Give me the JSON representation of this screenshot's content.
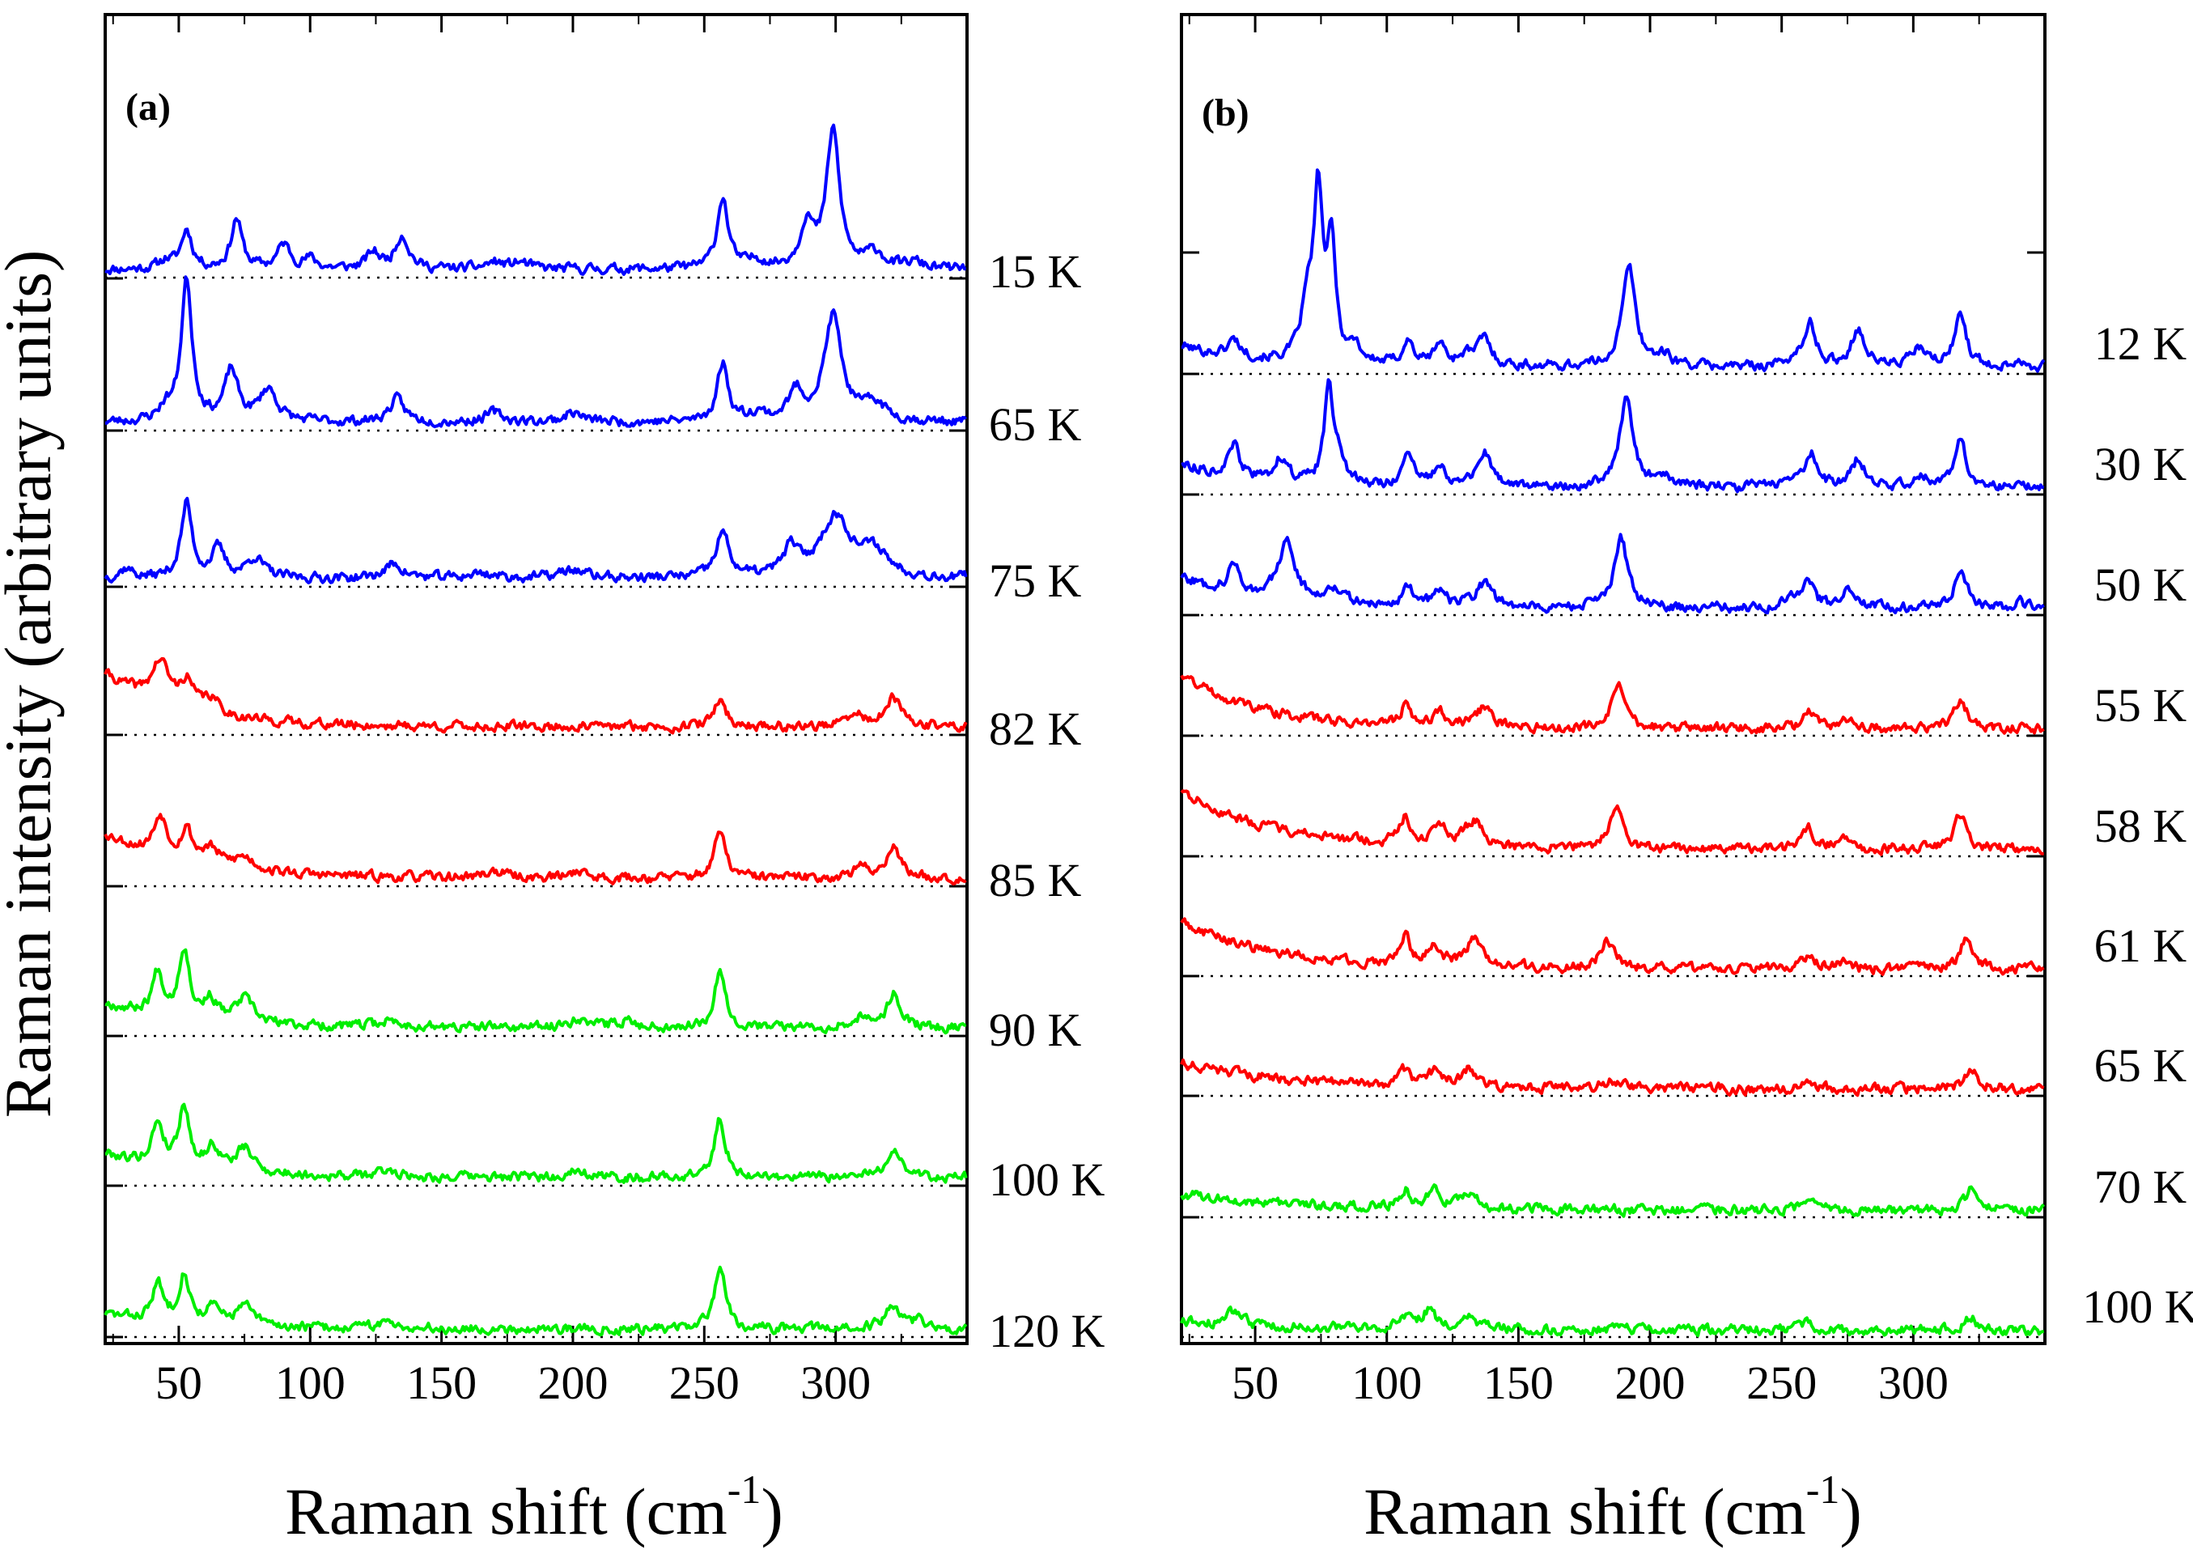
{
  "figure": {
    "ylabel": "Raman intensity (arbitrary units)"
  },
  "chart_data": [
    {
      "type": "line",
      "panel": "(a)",
      "xlabel": "Raman shift (cm",
      "xlabel_sup": "-1",
      "xlabel_close": ")",
      "ylabel": "Raman intensity (arbitrary units)",
      "xlim": [
        22,
        350
      ],
      "xticks": [
        50,
        100,
        150,
        200,
        250,
        300
      ],
      "xtick_labels": [
        "50",
        "100",
        "150",
        "200",
        "250",
        "300"
      ],
      "grid": false,
      "baseline_style": "dotted",
      "series": [
        {
          "name": "15 K",
          "label": "15 K",
          "color": "#0000ff",
          "amp": 1.0,
          "peaks": [
            [
              45,
              10,
              3
            ],
            [
              53,
              48,
              2.5
            ],
            [
              72,
              62,
              2.5
            ],
            [
              90,
              30,
              3
            ],
            [
              100,
              12,
              3
            ],
            [
              124,
              20,
              3
            ],
            [
              135,
              42,
              3
            ],
            [
              170,
              8,
              4
            ],
            [
              180,
              8,
              4
            ],
            [
              257,
              88,
              2.5
            ],
            [
              270,
              10,
              4
            ],
            [
              289,
              55,
              3
            ],
            [
              299,
              170,
              3
            ],
            [
              315,
              20,
              4
            ],
            [
              330,
              8,
              4
            ]
          ],
          "seed": 11
        },
        {
          "name": "65 K",
          "label": "65 K",
          "color": "#0000ff",
          "amp": 1.0,
          "peaks": [
            [
              45,
              15,
              3
            ],
            [
              53,
              175,
              2.5
            ],
            [
              70,
              62,
              3
            ],
            [
              84,
              40,
              4
            ],
            [
              133,
              28,
              3.5
            ],
            [
              170,
              12,
              4
            ],
            [
              200,
              12,
              4
            ],
            [
              257,
              72,
              2.5
            ],
            [
              270,
              10,
              4
            ],
            [
              285,
              35,
              3.5
            ],
            [
              299,
              130,
              4
            ],
            [
              315,
              22,
              5
            ]
          ],
          "seed": 23
        },
        {
          "name": "75 K",
          "label": "75 K",
          "color": "#0000ff",
          "amp": 1.0,
          "peaks": [
            [
              30,
              12,
              3
            ],
            [
              53,
              92,
              2.5
            ],
            [
              65,
              35,
              3
            ],
            [
              79,
              25,
              4
            ],
            [
              132,
              18,
              4
            ],
            [
              165,
              6,
              6
            ],
            [
              200,
              10,
              6
            ],
            [
              257,
              55,
              3
            ],
            [
              283,
              34,
              3.5
            ],
            [
              300,
              75,
              7
            ],
            [
              315,
              30,
              6
            ]
          ],
          "seed": 37
        },
        {
          "name": "82 K",
          "label": "82 K",
          "color": "#ff0000",
          "amp": 1.0,
          "peaks": [
            [
              43,
              50,
              4
            ],
            [
              53,
              32,
              3
            ],
            [
              62,
              18,
              4
            ],
            [
              256,
              35,
              2.5
            ],
            [
              308,
              14,
              4
            ],
            [
              322,
              34,
              3.5
            ]
          ],
          "decay": [
            65,
            28
          ],
          "seed": 41
        },
        {
          "name": "85 K",
          "label": "85 K",
          "color": "#ff0000",
          "amp": 1.0,
          "peaks": [
            [
              43,
              50,
              3
            ],
            [
              53,
              38,
              2.5
            ],
            [
              62,
              20,
              4
            ],
            [
              75,
              15,
              5
            ],
            [
              170,
              8,
              5
            ],
            [
              202,
              10,
              3
            ],
            [
              256,
              58,
              2.5
            ],
            [
              310,
              12,
              4
            ],
            [
              322,
              40,
              3
            ]
          ],
          "decay": [
            55,
            30
          ],
          "seed": 53
        },
        {
          "name": "90 K",
          "label": "90 K",
          "color": "#00ee00",
          "amp": 1.0,
          "peaks": [
            [
              42,
              52,
              2.5
            ],
            [
              52,
              85,
              2.5
            ],
            [
              62,
              25,
              3
            ],
            [
              75,
              30,
              4
            ],
            [
              130,
              8,
              5
            ],
            [
              202,
              12,
              4
            ],
            [
              220,
              8,
              5
            ],
            [
              256,
              72,
              2.5
            ],
            [
              308,
              12,
              4
            ],
            [
              322,
              42,
              3
            ]
          ],
          "decay": [
            30,
            30
          ],
          "seed": 67
        },
        {
          "name": "100 K",
          "label": "100 K",
          "color": "#00ee00",
          "amp": 1.0,
          "peaks": [
            [
              42,
              52,
              2.5
            ],
            [
              52,
              75,
              2.5
            ],
            [
              63,
              28,
              3
            ],
            [
              75,
              30,
              4
            ],
            [
              130,
              8,
              5
            ],
            [
              202,
              12,
              3
            ],
            [
              256,
              72,
              2.5
            ],
            [
              322,
              35,
              3.5
            ]
          ],
          "decay": [
            30,
            30
          ],
          "seed": 79
        },
        {
          "name": "120 K",
          "label": "120 K",
          "color": "#00ee00",
          "amp": 1.0,
          "peaks": [
            [
              42,
              45,
              2.5
            ],
            [
              52,
              60,
              2.5
            ],
            [
              63,
              20,
              3
            ],
            [
              75,
              25,
              4
            ],
            [
              130,
              8,
              5
            ],
            [
              256,
              80,
              2.5
            ],
            [
              322,
              30,
              3.5
            ],
            [
              332,
              12,
              2.5
            ]
          ],
          "decay": [
            18,
            30
          ],
          "seed": 83
        }
      ]
    },
    {
      "type": "line",
      "panel": "(b)",
      "xlabel": "Raman shift (cm",
      "xlabel_sup": "-1",
      "xlabel_close": ")",
      "ylabel": "Raman intensity (arbitrary units)",
      "xlim": [
        22,
        350
      ],
      "xticks": [
        50,
        100,
        150,
        200,
        250,
        300
      ],
      "xtick_labels": [
        "50",
        "100",
        "150",
        "200",
        "250",
        "300"
      ],
      "grid": false,
      "baseline_style": "dotted",
      "series": [
        {
          "name": "12 K",
          "label": "12 K",
          "color": "#0000ff",
          "amp": 1.0,
          "peaks": [
            [
              42,
              25,
              3
            ],
            [
              70,
              80,
              3
            ],
            [
              74,
              230,
              2
            ],
            [
              79,
              165,
              2
            ],
            [
              88,
              25,
              2.5
            ],
            [
              108,
              35,
              2.5
            ],
            [
              120,
              32,
              2.5
            ],
            [
              130,
              15,
              3
            ],
            [
              137,
              40,
              3
            ],
            [
              192,
              145,
              3
            ],
            [
              205,
              15,
              4
            ],
            [
              255,
              12,
              3
            ],
            [
              261,
              60,
              2.5
            ],
            [
              279,
              55,
              3
            ],
            [
              302,
              25,
              3.5
            ],
            [
              318,
              80,
              2.5
            ],
            [
              340,
              10,
              2.5
            ]
          ],
          "decay": [
            30,
            25
          ],
          "seed": 101
        },
        {
          "name": "30 K",
          "label": "30 K",
          "color": "#0000ff",
          "amp": 1.0,
          "peaks": [
            [
              42,
              45,
              2.5
            ],
            [
              60,
              35,
              3
            ],
            [
              78,
              140,
              2
            ],
            [
              82,
              40,
              2.5
            ],
            [
              108,
              45,
              2.5
            ],
            [
              120,
              35,
              2.5
            ],
            [
              137,
              50,
              3
            ],
            [
              191,
              130,
              3
            ],
            [
              205,
              15,
              4
            ],
            [
              253,
              14,
              3
            ],
            [
              261,
              50,
              2.5
            ],
            [
              279,
              40,
              3
            ],
            [
              303,
              14,
              3.5
            ],
            [
              318,
              70,
              2.5
            ],
            [
              340,
              10,
              2.5
            ]
          ],
          "decay": [
            35,
            25
          ],
          "seed": 113
        },
        {
          "name": "50 K",
          "label": "50 K",
          "color": "#0000ff",
          "amp": 1.0,
          "peaks": [
            [
              42,
              40,
              3
            ],
            [
              62,
              85,
              4
            ],
            [
              80,
              25,
              4
            ],
            [
              108,
              30,
              2.5
            ],
            [
              120,
              25,
              2.5
            ],
            [
              137,
              35,
              4
            ],
            [
              189,
              100,
              3
            ],
            [
              253,
              12,
              3
            ],
            [
              260,
              42,
              2.5
            ],
            [
              275,
              30,
              3
            ],
            [
              318,
              60,
              2.5
            ],
            [
              340,
              10,
              2.5
            ]
          ],
          "decay": [
            45,
            25
          ],
          "seed": 127
        },
        {
          "name": "55 K",
          "label": "55 K",
          "color": "#ff0000",
          "amp": 1.0,
          "peaks": [
            [
              107,
              28,
              2.5
            ],
            [
              120,
              22,
              3
            ],
            [
              137,
              28,
              4
            ],
            [
              188,
              60,
              3
            ],
            [
              260,
              28,
              2.5
            ],
            [
              275,
              15,
              3
            ],
            [
              318,
              42,
              3
            ]
          ],
          "decay": [
            80,
            30
          ],
          "seed": 131
        },
        {
          "name": "58 K",
          "label": "58 K",
          "color": "#ff0000",
          "amp": 1.0,
          "peaks": [
            [
              107,
              40,
              2.5
            ],
            [
              120,
              30,
              3
            ],
            [
              133,
              38,
              4
            ],
            [
              187,
              62,
              3
            ],
            [
              260,
              30,
              2.5
            ],
            [
              273,
              16,
              3
            ],
            [
              318,
              48,
              3
            ]
          ],
          "decay": [
            85,
            35
          ],
          "seed": 137
        },
        {
          "name": "61 K",
          "label": "61 K",
          "color": "#ff0000",
          "amp": 1.0,
          "peaks": [
            [
              107,
              38,
              2.5
            ],
            [
              118,
              30,
              3
            ],
            [
              133,
              38,
              4
            ],
            [
              184,
              40,
              3.5
            ],
            [
              260,
              20,
              2.5
            ],
            [
              273,
              10,
              3
            ],
            [
              320,
              40,
              3
            ]
          ],
          "decay": [
            70,
            35
          ],
          "seed": 149
        },
        {
          "name": "65 K",
          "label": "65 K",
          "color": "#ff0000",
          "amp": 1.0,
          "peaks": [
            [
              107,
              22,
              2.5
            ],
            [
              118,
              20,
              3
            ],
            [
              131,
              26,
              3.5
            ],
            [
              185,
              10,
              4
            ],
            [
              260,
              15,
              2.5
            ],
            [
              322,
              28,
              3
            ]
          ],
          "decay": [
            38,
            40
          ],
          "seed": 151
        },
        {
          "name": "70 K",
          "label": "70 K",
          "color": "#00ee00",
          "amp": 1.0,
          "peaks": [
            [
              107,
              25,
              2.5
            ],
            [
              118,
              28,
              3
            ],
            [
              131,
              26,
              3
            ],
            [
              260,
              15,
              2.5
            ],
            [
              322,
              30,
              2.5
            ]
          ],
          "decay": [
            24,
            45
          ],
          "seed": 163
        },
        {
          "name": "100 K",
          "label": "100 K",
          "color": "#00ee00",
          "amp": 1.0,
          "peaks": [
            [
              42,
              20,
              3
            ],
            [
              108,
              15,
              3
            ],
            [
              116,
              25,
              3
            ],
            [
              131,
              20,
              3.5
            ],
            [
              260,
              12,
              2.5
            ],
            [
              322,
              20,
              2.5
            ]
          ],
          "decay": [
            12,
            50
          ],
          "seed": 173
        }
      ]
    }
  ]
}
